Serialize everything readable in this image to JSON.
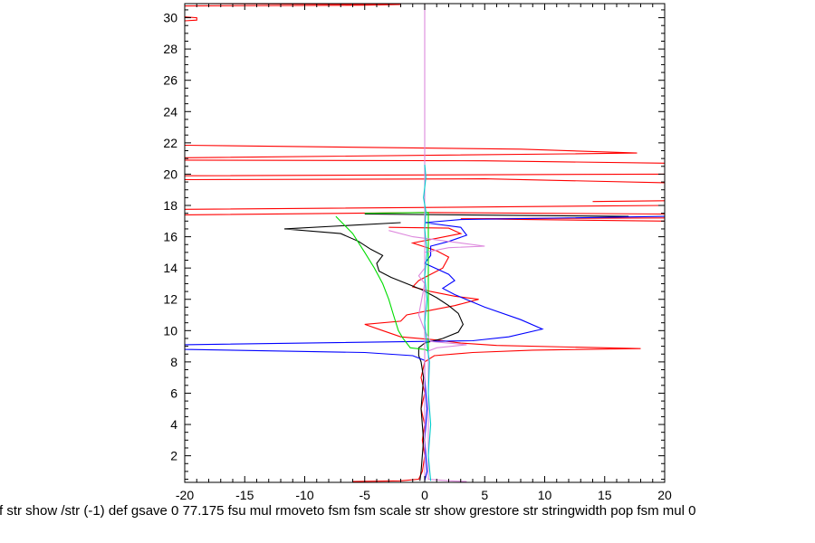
{
  "chart_data": {
    "type": "line",
    "title": "",
    "xlabel": "",
    "ylabel": "",
    "xlim": [
      -20,
      20
    ],
    "ylim": [
      0.3,
      30.9
    ],
    "x_ticks": [
      "-20",
      "-15",
      "-10",
      "-5",
      "0",
      "5",
      "10",
      "15",
      "20"
    ],
    "y_ticks": [
      "2",
      "4",
      "6",
      "8",
      "10",
      "12",
      "14",
      "16",
      "18",
      "20",
      "22",
      "24",
      "26",
      "28",
      "30"
    ],
    "grid": false,
    "legend": "none",
    "footer_text": "f str show /str (-1) def gsave 0 77.175 fsu mul rmoveto fsm fsm scale str show grestore str stringwidth pop fsm mul 0",
    "series": [
      {
        "color": "#ff0000",
        "points": [
          [
            -20,
            30.75
          ],
          [
            -5,
            30.8
          ],
          [
            -2,
            30.85
          ],
          [
            -20,
            30.9
          ],
          null,
          [
            -20,
            30.05
          ],
          [
            -19,
            30.0
          ],
          [
            -19,
            29.85
          ],
          [
            -20,
            29.8
          ],
          null,
          [
            -20,
            21.85
          ],
          [
            8,
            21.6
          ],
          [
            17.7,
            21.35
          ],
          [
            12,
            21.3
          ],
          [
            -20,
            21.05
          ],
          null,
          [
            -20,
            20.9
          ],
          [
            5,
            20.85
          ],
          [
            20,
            20.7
          ],
          null,
          [
            -20,
            19.9
          ],
          [
            20,
            20.0
          ],
          null,
          [
            -20,
            19.65
          ],
          [
            5,
            19.7
          ],
          [
            20,
            19.45
          ],
          null,
          [
            14,
            18.25
          ],
          [
            20,
            18.3
          ],
          null,
          [
            -20,
            17.75
          ],
          [
            5,
            17.9
          ],
          [
            20,
            18.0
          ],
          null,
          [
            -20,
            17.4
          ],
          [
            0,
            17.55
          ],
          [
            20,
            17.45
          ],
          null,
          [
            20,
            17.2
          ],
          [
            3,
            17.15
          ],
          [
            20,
            17.0
          ],
          null,
          [
            -3,
            16.6
          ],
          [
            2,
            16.55
          ],
          [
            3,
            16.2
          ],
          [
            1,
            15.9
          ],
          [
            -1,
            15.6
          ],
          [
            1,
            15.1
          ],
          [
            2,
            14.7
          ],
          [
            1.5,
            14.0
          ],
          [
            0.5,
            13.6
          ],
          [
            -0.5,
            13.2
          ],
          [
            -1,
            12.8
          ],
          [
            0.5,
            12.5
          ],
          [
            2.5,
            12.2
          ],
          [
            4.5,
            12.0
          ],
          [
            2.5,
            11.6
          ],
          [
            0.5,
            11.3
          ],
          [
            -1.5,
            11.0
          ],
          [
            -2,
            10.6
          ],
          [
            -5,
            10.4
          ],
          [
            -3.5,
            10.0
          ],
          [
            -2,
            9.6
          ],
          [
            1,
            9.4
          ],
          [
            3,
            9.2
          ],
          [
            6,
            9.05
          ],
          [
            18,
            8.85
          ],
          [
            9,
            8.75
          ],
          [
            4,
            8.6
          ],
          [
            0.8,
            8.4
          ],
          [
            0,
            8.0
          ],
          [
            -0.3,
            7.0
          ],
          [
            0,
            6.0
          ],
          [
            -0.3,
            5.0
          ],
          [
            0,
            4.0
          ],
          [
            -0.2,
            3.0
          ],
          [
            0,
            2.0
          ],
          [
            -0.2,
            1.0
          ],
          [
            -0.5,
            0.5
          ],
          [
            -2,
            0.4
          ],
          [
            -6,
            0.35
          ]
        ]
      },
      {
        "color": "#000000",
        "points": [
          [
            -5,
            17.45
          ],
          [
            17,
            17.3
          ],
          null,
          [
            -2,
            16.9
          ],
          [
            -11.7,
            16.5
          ],
          [
            -7,
            16.2
          ],
          [
            -5.5,
            15.7
          ],
          [
            -4.5,
            15.2
          ],
          [
            -3.5,
            14.8
          ],
          [
            -4,
            14.3
          ],
          [
            -3.8,
            13.8
          ],
          [
            -2.8,
            13.4
          ],
          [
            -1.5,
            13.0
          ],
          [
            -0.2,
            12.6
          ],
          [
            1,
            12.1
          ],
          [
            2,
            11.6
          ],
          [
            2.8,
            11.1
          ],
          [
            3.2,
            10.4
          ],
          [
            2.8,
            9.9
          ],
          [
            1.5,
            9.5
          ],
          [
            0,
            9.2
          ],
          [
            -0.5,
            8.9
          ],
          [
            -0.5,
            8.4
          ],
          [
            -0.3,
            8.0
          ],
          [
            -0.1,
            7.0
          ],
          [
            -0.3,
            5.0
          ],
          [
            -0.1,
            3.0
          ],
          [
            -0.3,
            1.0
          ],
          [
            -0.4,
            0.4
          ]
        ]
      },
      {
        "color": "#0000ff",
        "points": [
          [
            20,
            17.3
          ],
          [
            3,
            17.1
          ],
          [
            0,
            16.9
          ],
          [
            3,
            16.6
          ],
          [
            3.5,
            16.1
          ],
          [
            2,
            15.7
          ],
          [
            0.5,
            15.4
          ],
          [
            0.5,
            14.8
          ],
          [
            0,
            14.3
          ],
          [
            2,
            13.6
          ],
          [
            2.5,
            13.2
          ],
          [
            1.5,
            12.7
          ],
          [
            2.5,
            12.3
          ],
          [
            5,
            11.5
          ],
          [
            8,
            10.7
          ],
          [
            9.8,
            10.1
          ],
          [
            7,
            9.6
          ],
          [
            4,
            9.35
          ],
          [
            -20,
            9.1
          ],
          [
            -20,
            8.8
          ],
          [
            -5,
            8.6
          ],
          [
            -1,
            8.4
          ],
          [
            0,
            8.1
          ],
          [
            0,
            7.0
          ],
          [
            0.2,
            5.0
          ],
          [
            0,
            3.0
          ],
          [
            0.2,
            1.0
          ],
          [
            0,
            0.4
          ]
        ]
      },
      {
        "color": "#00dd00",
        "points": [
          [
            -7.4,
            17.3
          ],
          [
            -6,
            16.2
          ],
          [
            -5,
            15.0
          ],
          [
            -4.2,
            14.0
          ],
          [
            -3.5,
            13.0
          ],
          [
            -3.0,
            12.0
          ],
          [
            -2.6,
            11.0
          ],
          [
            -2.2,
            10.0
          ],
          [
            -1.8,
            9.5
          ],
          [
            -1.2,
            8.9
          ],
          [
            0,
            8.8
          ],
          [
            0.3,
            8.7
          ],
          [
            0.3,
            17.55
          ],
          [
            -5,
            17.5
          ]
        ]
      },
      {
        "color": "#dd88dd",
        "points": [
          [
            0,
            30.9
          ],
          [
            0,
            0.4
          ],
          null,
          [
            -3,
            16.4
          ],
          [
            -1,
            16.0
          ],
          [
            2,
            15.7
          ],
          [
            5,
            15.4
          ],
          [
            2,
            15.3
          ],
          [
            0,
            15.0
          ],
          [
            0,
            14.0
          ],
          [
            -0.5,
            13.5
          ],
          [
            0,
            13.0
          ],
          [
            -0.5,
            11.0
          ],
          [
            0,
            10.0
          ],
          [
            0.5,
            9.3
          ],
          [
            3.5,
            9.1
          ],
          [
            1,
            8.9
          ],
          [
            0.3,
            8.7
          ],
          [
            0.3,
            0.5
          ],
          [
            2,
            0.4
          ],
          [
            3.5,
            0.35
          ]
        ]
      },
      {
        "color": "#00cccc",
        "points": [
          [
            0,
            20.6
          ],
          [
            0.1,
            19.8
          ],
          [
            -0.1,
            18.5
          ],
          [
            0.1,
            17.6
          ],
          [
            0,
            16.5
          ],
          [
            0.2,
            15.0
          ],
          [
            0,
            13.5
          ],
          [
            0.2,
            12.0
          ],
          [
            0,
            10.5
          ],
          [
            0.2,
            9.0
          ],
          [
            0.4,
            8.0
          ],
          [
            0.3,
            6.0
          ],
          [
            0.5,
            4.0
          ],
          [
            0.3,
            2.0
          ],
          [
            0.5,
            0.4
          ]
        ]
      }
    ]
  }
}
